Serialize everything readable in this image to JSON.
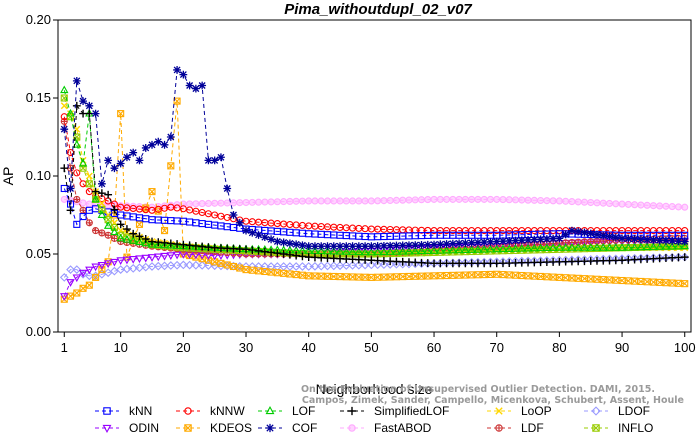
{
  "chart_data": {
    "type": "line",
    "title": "Pima_withoutdupl_02_v07",
    "xlabel": "Neighborhood size",
    "ylabel": "AP",
    "xlim": [
      0,
      101
    ],
    "ylim": [
      0.0,
      0.2
    ],
    "xticks": [
      1,
      10,
      20,
      30,
      40,
      50,
      60,
      70,
      80,
      90,
      100
    ],
    "yticks": [
      "0.00",
      "0.05",
      "0.10",
      "0.15",
      "0.20"
    ],
    "grid": false,
    "legend_position": "bottom",
    "watermark": [
      "Campos, Zimek, Sander, Campello, Micenkova, Schubert, Assent, Houle",
      "On the Evaluation of Unsupervised Outlier Detection. DAMI, 2015."
    ],
    "series": [
      {
        "name": "kNN",
        "color": "#0000ff",
        "marker": "square",
        "points": [
          [
            1,
            0.092
          ],
          [
            2,
            0.082
          ],
          [
            3,
            0.069
          ],
          [
            4,
            0.074
          ],
          [
            5,
            0.078
          ],
          [
            6,
            0.079
          ],
          [
            8,
            0.077
          ],
          [
            10,
            0.075
          ],
          [
            15,
            0.072
          ],
          [
            20,
            0.071
          ],
          [
            30,
            0.066
          ],
          [
            40,
            0.063
          ],
          [
            50,
            0.061
          ],
          [
            60,
            0.062
          ],
          [
            70,
            0.062
          ],
          [
            80,
            0.063
          ],
          [
            90,
            0.062
          ],
          [
            100,
            0.062
          ]
        ]
      },
      {
        "name": "kNNW",
        "color": "#ff0000",
        "marker": "circle",
        "points": [
          [
            1,
            0.138
          ],
          [
            2,
            0.115
          ],
          [
            3,
            0.102
          ],
          [
            4,
            0.095
          ],
          [
            5,
            0.09
          ],
          [
            6,
            0.087
          ],
          [
            8,
            0.084
          ],
          [
            10,
            0.08
          ],
          [
            15,
            0.078
          ],
          [
            18,
            0.08
          ],
          [
            20,
            0.079
          ],
          [
            25,
            0.075
          ],
          [
            30,
            0.071
          ],
          [
            40,
            0.068
          ],
          [
            50,
            0.066
          ],
          [
            60,
            0.065
          ],
          [
            70,
            0.065
          ],
          [
            80,
            0.065
          ],
          [
            90,
            0.065
          ],
          [
            100,
            0.065
          ]
        ]
      },
      {
        "name": "LOF",
        "color": "#00cc00",
        "marker": "triangle-up",
        "points": [
          [
            1,
            0.155
          ],
          [
            2,
            0.14
          ],
          [
            3,
            0.12
          ],
          [
            4,
            0.108
          ],
          [
            5,
            0.14
          ],
          [
            6,
            0.085
          ],
          [
            7,
            0.075
          ],
          [
            8,
            0.068
          ],
          [
            10,
            0.06
          ],
          [
            15,
            0.056
          ],
          [
            20,
            0.055
          ],
          [
            30,
            0.053
          ],
          [
            40,
            0.052
          ],
          [
            50,
            0.051
          ],
          [
            60,
            0.052
          ],
          [
            70,
            0.053
          ],
          [
            80,
            0.054
          ],
          [
            90,
            0.054
          ],
          [
            100,
            0.055
          ]
        ]
      },
      {
        "name": "SimplifiedLOF",
        "color": "#000000",
        "marker": "plus",
        "points": [
          [
            1,
            0.105
          ],
          [
            2,
            0.078
          ],
          [
            3,
            0.145
          ],
          [
            4,
            0.14
          ],
          [
            5,
            0.14
          ],
          [
            6,
            0.09
          ],
          [
            8,
            0.088
          ],
          [
            10,
            0.069
          ],
          [
            12,
            0.063
          ],
          [
            15,
            0.058
          ],
          [
            20,
            0.056
          ],
          [
            25,
            0.054
          ],
          [
            30,
            0.053
          ],
          [
            40,
            0.048
          ],
          [
            50,
            0.046
          ],
          [
            60,
            0.044
          ],
          [
            70,
            0.044
          ],
          [
            80,
            0.045
          ],
          [
            90,
            0.046
          ],
          [
            100,
            0.048
          ]
        ]
      },
      {
        "name": "LoOP",
        "color": "#ffd700",
        "marker": "cross",
        "points": [
          [
            1,
            0.145
          ],
          [
            2,
            0.14
          ],
          [
            3,
            0.13
          ],
          [
            4,
            0.11
          ],
          [
            6,
            0.09
          ],
          [
            8,
            0.075
          ],
          [
            10,
            0.065
          ],
          [
            15,
            0.058
          ],
          [
            20,
            0.055
          ],
          [
            30,
            0.052
          ],
          [
            40,
            0.05
          ],
          [
            50,
            0.05
          ],
          [
            60,
            0.051
          ],
          [
            70,
            0.052
          ],
          [
            80,
            0.053
          ],
          [
            90,
            0.054
          ],
          [
            100,
            0.054
          ]
        ]
      },
      {
        "name": "LDOF",
        "color": "#9999ff",
        "marker": "diamond",
        "points": [
          [
            1,
            0.035
          ],
          [
            2,
            0.04
          ],
          [
            3,
            0.04
          ],
          [
            4,
            0.037
          ],
          [
            5,
            0.036
          ],
          [
            6,
            0.036
          ],
          [
            8,
            0.038
          ],
          [
            10,
            0.04
          ],
          [
            15,
            0.042
          ],
          [
            20,
            0.043
          ],
          [
            30,
            0.042
          ],
          [
            40,
            0.042
          ],
          [
            50,
            0.043
          ],
          [
            60,
            0.044
          ],
          [
            70,
            0.045
          ],
          [
            80,
            0.046
          ],
          [
            90,
            0.047
          ],
          [
            100,
            0.048
          ]
        ]
      },
      {
        "name": "ODIN",
        "color": "#9900ff",
        "marker": "triangle-down",
        "points": [
          [
            1,
            0.023
          ],
          [
            2,
            0.032
          ],
          [
            3,
            0.035
          ],
          [
            4,
            0.038
          ],
          [
            5,
            0.04
          ],
          [
            6,
            0.042
          ],
          [
            8,
            0.044
          ],
          [
            10,
            0.046
          ],
          [
            15,
            0.048
          ],
          [
            20,
            0.05
          ],
          [
            25,
            0.049
          ],
          [
            30,
            0.05
          ],
          [
            40,
            0.05
          ],
          [
            50,
            0.052
          ],
          [
            60,
            0.054
          ],
          [
            70,
            0.055
          ],
          [
            80,
            0.057
          ],
          [
            90,
            0.058
          ],
          [
            100,
            0.058
          ]
        ]
      },
      {
        "name": "KDEOS",
        "color": "#ffaa00",
        "marker": "square-x",
        "points": [
          [
            1,
            0.021
          ],
          [
            2,
            0.023
          ],
          [
            3,
            0.025
          ],
          [
            4,
            0.028
          ],
          [
            5,
            0.03
          ],
          [
            6,
            0.035
          ],
          [
            7,
            0.04
          ],
          [
            8,
            0.045
          ],
          [
            9,
            0.075
          ],
          [
            10,
            0.14
          ],
          [
            11,
            0.048
          ],
          [
            15,
            0.09
          ],
          [
            17,
            0.065
          ],
          [
            19,
            0.148
          ],
          [
            20,
            0.05
          ],
          [
            25,
            0.045
          ],
          [
            30,
            0.04
          ],
          [
            40,
            0.036
          ],
          [
            50,
            0.035
          ],
          [
            60,
            0.036
          ],
          [
            70,
            0.037
          ],
          [
            80,
            0.035
          ],
          [
            90,
            0.033
          ],
          [
            100,
            0.031
          ]
        ]
      },
      {
        "name": "COF",
        "color": "#000099",
        "marker": "asterisk",
        "points": [
          [
            1,
            0.13
          ],
          [
            2,
            0.092
          ],
          [
            3,
            0.161
          ],
          [
            4,
            0.148
          ],
          [
            5,
            0.145
          ],
          [
            6,
            0.14
          ],
          [
            7,
            0.095
          ],
          [
            8,
            0.11
          ],
          [
            9,
            0.105
          ],
          [
            10,
            0.108
          ],
          [
            11,
            0.112
          ],
          [
            12,
            0.115
          ],
          [
            13,
            0.11
          ],
          [
            14,
            0.118
          ],
          [
            15,
            0.12
          ],
          [
            16,
            0.122
          ],
          [
            17,
            0.12
          ],
          [
            18,
            0.125
          ],
          [
            19,
            0.168
          ],
          [
            20,
            0.165
          ],
          [
            21,
            0.158
          ],
          [
            22,
            0.156
          ],
          [
            23,
            0.158
          ],
          [
            24,
            0.11
          ],
          [
            25,
            0.11
          ],
          [
            26,
            0.112
          ],
          [
            27,
            0.092
          ],
          [
            28,
            0.075
          ],
          [
            30,
            0.065
          ],
          [
            35,
            0.058
          ],
          [
            40,
            0.055
          ],
          [
            50,
            0.055
          ],
          [
            60,
            0.056
          ],
          [
            70,
            0.058
          ],
          [
            80,
            0.06
          ],
          [
            82,
            0.065
          ],
          [
            90,
            0.06
          ],
          [
            100,
            0.058
          ]
        ]
      },
      {
        "name": "FastABOD",
        "color": "#ffaaff",
        "marker": "circle-filled",
        "points": [
          [
            1,
            0.085
          ],
          [
            5,
            0.082
          ],
          [
            10,
            0.081
          ],
          [
            15,
            0.08
          ],
          [
            20,
            0.082
          ],
          [
            30,
            0.083
          ],
          [
            40,
            0.084
          ],
          [
            50,
            0.084
          ],
          [
            60,
            0.085
          ],
          [
            70,
            0.085
          ],
          [
            80,
            0.084
          ],
          [
            90,
            0.082
          ],
          [
            100,
            0.08
          ]
        ]
      },
      {
        "name": "LDF",
        "color": "#cc3333",
        "marker": "circle-plus",
        "points": [
          [
            1,
            0.135
          ],
          [
            2,
            0.105
          ],
          [
            3,
            0.085
          ],
          [
            4,
            0.078
          ],
          [
            5,
            0.07
          ],
          [
            6,
            0.065
          ],
          [
            8,
            0.062
          ],
          [
            10,
            0.058
          ],
          [
            15,
            0.055
          ],
          [
            20,
            0.053
          ],
          [
            30,
            0.05
          ],
          [
            40,
            0.05
          ],
          [
            50,
            0.05
          ],
          [
            60,
            0.052
          ],
          [
            70,
            0.054
          ],
          [
            80,
            0.057
          ],
          [
            90,
            0.059
          ],
          [
            100,
            0.06
          ]
        ]
      },
      {
        "name": "INFLO",
        "color": "#99cc00",
        "marker": "square-x",
        "points": [
          [
            1,
            0.15
          ],
          [
            2,
            0.138
          ],
          [
            3,
            0.125
          ],
          [
            4,
            0.105
          ],
          [
            5,
            0.095
          ],
          [
            6,
            0.085
          ],
          [
            8,
            0.072
          ],
          [
            10,
            0.062
          ],
          [
            15,
            0.056
          ],
          [
            20,
            0.054
          ],
          [
            30,
            0.052
          ],
          [
            40,
            0.05
          ],
          [
            50,
            0.05
          ],
          [
            60,
            0.051
          ],
          [
            70,
            0.052
          ],
          [
            80,
            0.053
          ],
          [
            90,
            0.054
          ],
          [
            100,
            0.055
          ]
        ]
      }
    ]
  }
}
